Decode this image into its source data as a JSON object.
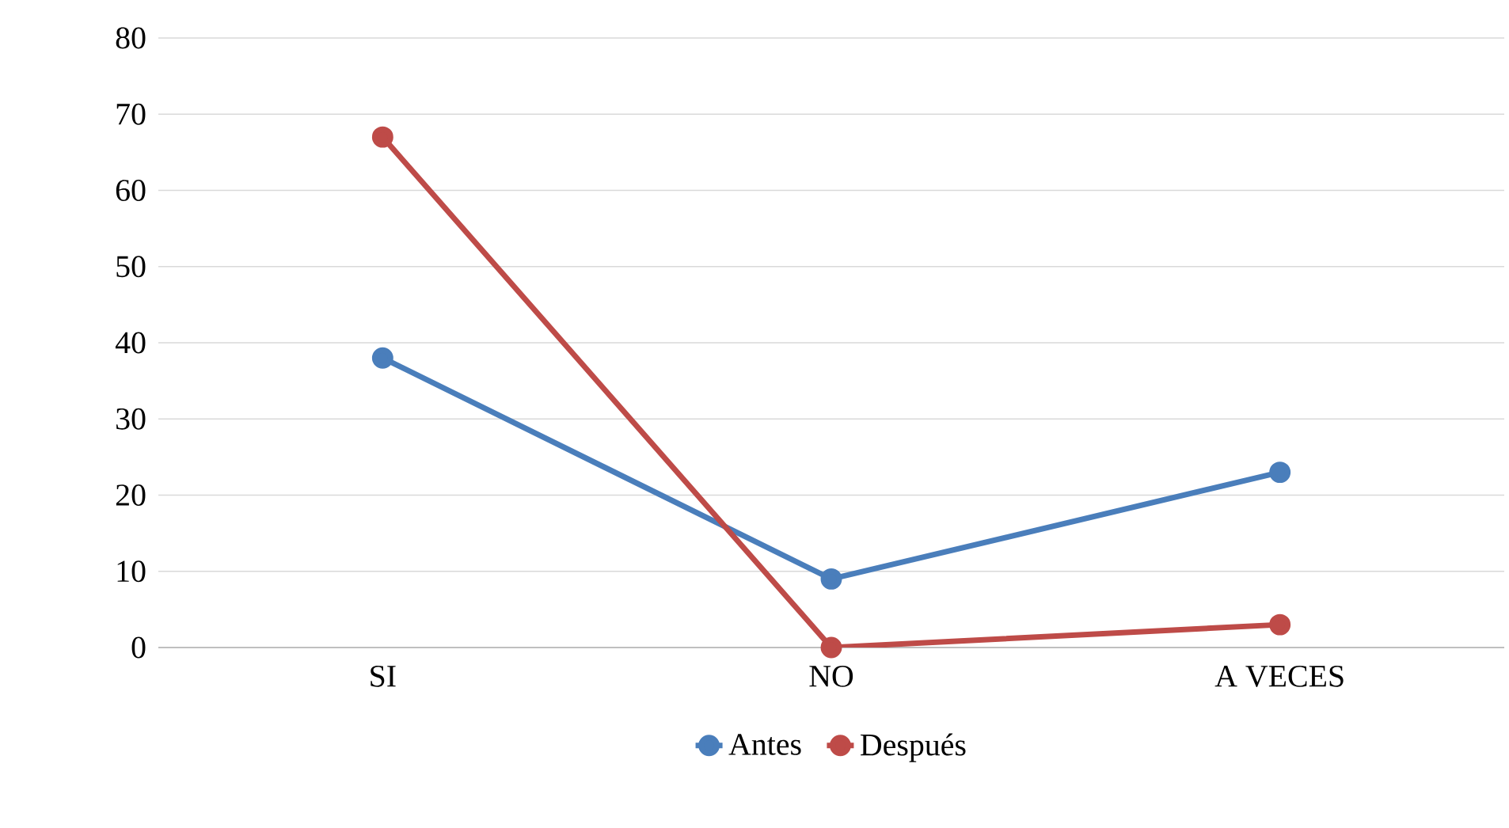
{
  "chart_data": {
    "type": "line",
    "categories": [
      "SI",
      "NO",
      "A VECES"
    ],
    "series": [
      {
        "name": "Antes",
        "color": "#4a7ebb",
        "values": [
          38,
          9,
          23
        ]
      },
      {
        "name": "Después",
        "color": "#be4b48",
        "values": [
          67,
          0,
          3
        ]
      }
    ],
    "ylim": [
      0,
      80
    ],
    "yticks": [
      0,
      10,
      20,
      30,
      40,
      50,
      60,
      70,
      80
    ],
    "grid": "y",
    "legend": "bottom",
    "marker": "circle",
    "line_style": "solid"
  }
}
